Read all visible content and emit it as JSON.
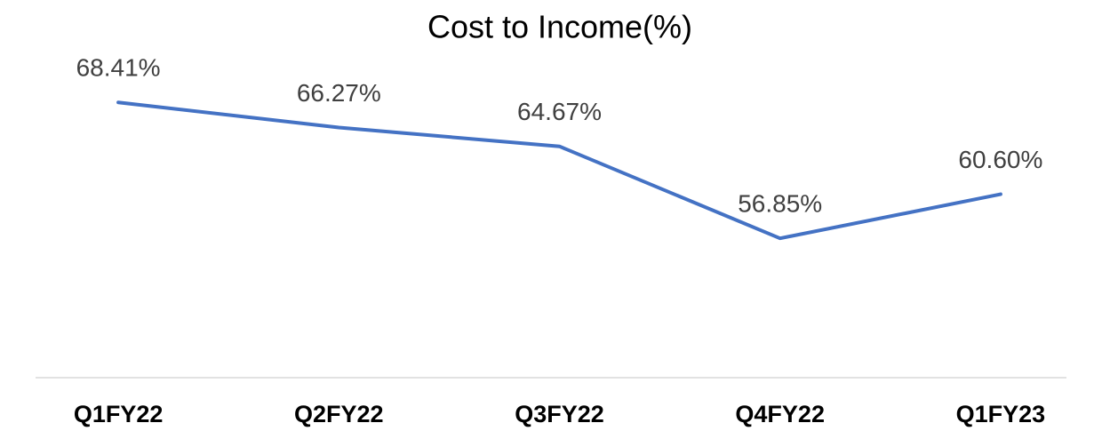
{
  "chart_data": {
    "type": "line",
    "title": "Cost to Income(%)",
    "categories": [
      "Q1FY22",
      "Q2FY22",
      "Q3FY22",
      "Q4FY22",
      "Q1FY23"
    ],
    "values": [
      68.41,
      66.27,
      64.67,
      56.85,
      60.6
    ],
    "value_labels": [
      "68.41%",
      "66.27%",
      "64.67%",
      "56.85%",
      "60.60%"
    ],
    "color": "#4472c4",
    "ylim": [
      45,
      75
    ]
  }
}
